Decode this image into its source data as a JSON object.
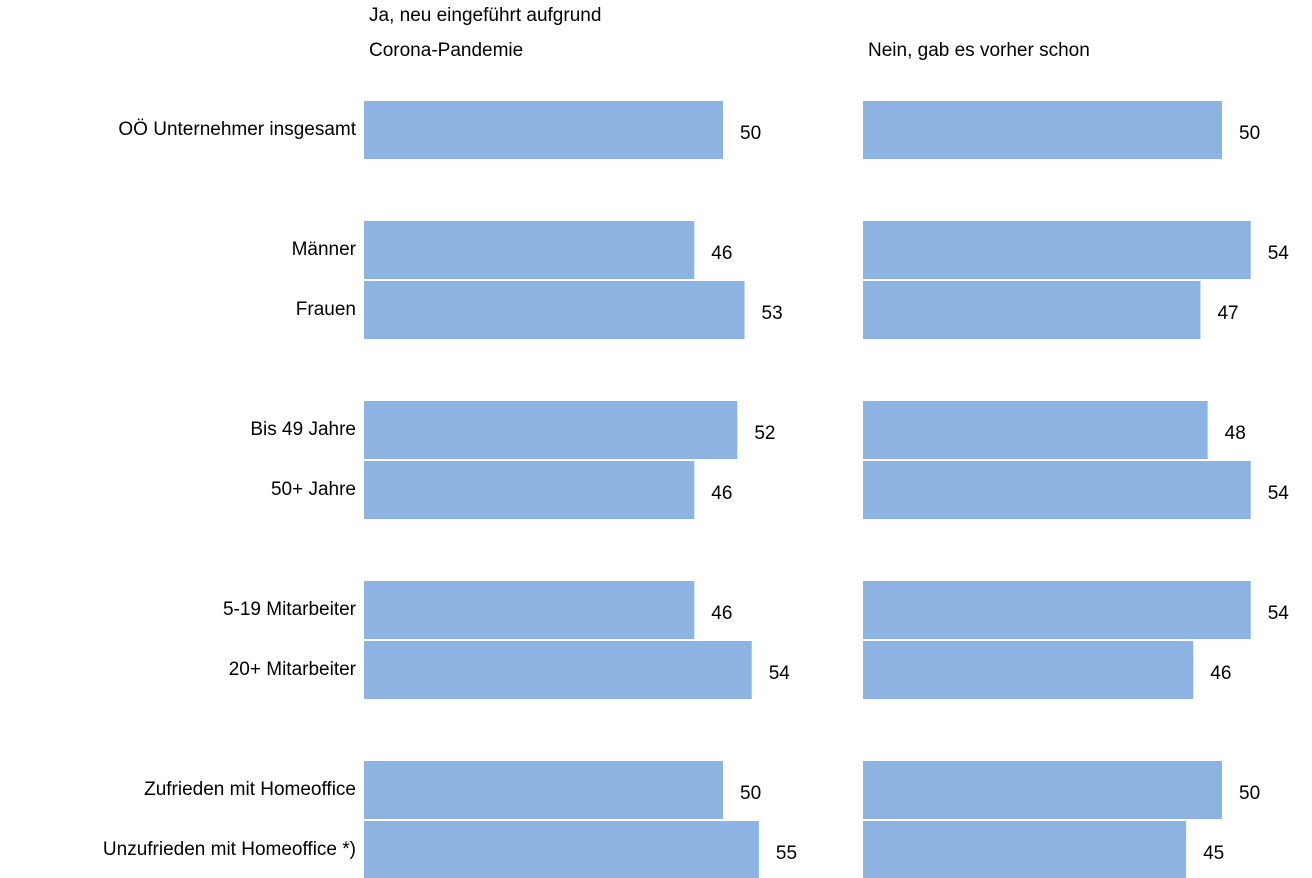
{
  "chart_data": {
    "type": "bar",
    "orientation": "horizontal",
    "categories": [
      "OÖ Unternehmer insgesamt",
      "Männer",
      "Frauen",
      "Bis 49 Jahre",
      "50+ Jahre",
      "5-19 Mitarbeiter",
      "20+ Mitarbeiter",
      "Zufrieden mit Homeoffice",
      "Unzufrieden mit Homeoffice *)"
    ],
    "series": [
      {
        "name": "Ja, neu eingeführt aufgrund Corona-Pandemie",
        "color": "#8db3e2",
        "values": [
          50,
          46,
          53,
          52,
          46,
          46,
          54,
          50,
          55
        ]
      },
      {
        "name": "Nein, gab es vorher schon",
        "color": "#8db3e2",
        "values": [
          50,
          54,
          47,
          48,
          54,
          54,
          46,
          50,
          45
        ]
      }
    ],
    "xlim": [
      0,
      100
    ]
  }
}
